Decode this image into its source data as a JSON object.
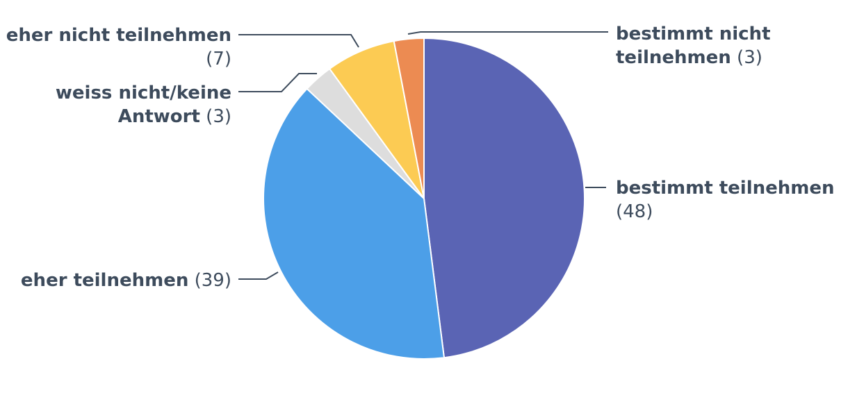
{
  "chart_data": {
    "type": "pie",
    "title": "",
    "slices": [
      {
        "label": "bestimmt teilnehmen",
        "value": 48,
        "color": "#5a64b4"
      },
      {
        "label": "eher teilnehmen",
        "value": 39,
        "color": "#4c9fe8"
      },
      {
        "label": "weiss nicht/keine Antwort",
        "value": 3,
        "color": "#dddddd"
      },
      {
        "label": "eher nicht teilnehmen",
        "value": 7,
        "color": "#fccb53"
      },
      {
        "label": "bestimmt nicht teilnehmen",
        "value": 3,
        "color": "#ec8b52"
      }
    ],
    "labels": [
      {
        "lines": [
          "bestimmt teilnehmen"
        ],
        "count": "(48)"
      },
      {
        "lines": [
          "eher teilnehmen"
        ],
        "count": "(39)"
      },
      {
        "lines": [
          "weiss nicht/keine",
          "Antwort"
        ],
        "count": "(3)"
      },
      {
        "lines": [
          "eher nicht teilnehmen"
        ],
        "count": "(7)"
      },
      {
        "lines": [
          "bestimmt nicht",
          "teilnehmen"
        ],
        "count": "(3)"
      }
    ]
  }
}
